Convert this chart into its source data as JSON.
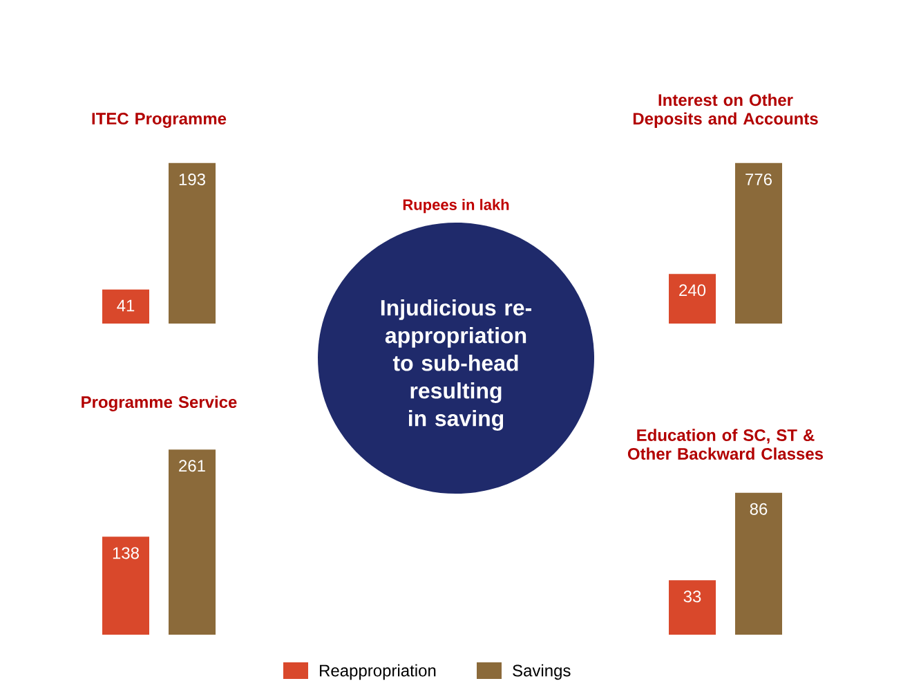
{
  "chart_data": [
    {
      "type": "bar",
      "title": "ITEC Programme",
      "categories": [
        null
      ],
      "data_labels": true,
      "series": [
        {
          "color": "#d9482b",
          "values": [
            41
          ]
        },
        {
          "color": "#8b6a3a",
          "values": [
            193
          ]
        }
      ]
    },
    {
      "type": "bar",
      "title": "Interest on  Other Deposits and Accounts",
      "categories": [
        null
      ],
      "data_labels": true,
      "series": [
        {
          "color": "#d9482b",
          "values": [
            240
          ]
        },
        {
          "color": "#8b6a3a",
          "values": [
            776
          ]
        }
      ]
    },
    {
      "type": "bar",
      "title": "Programme Service",
      "categories": [
        null
      ],
      "data_labels": true,
      "series": [
        {
          "color": "#d9482b",
          "values": [
            138
          ]
        },
        {
          "color": "#8b6a3a",
          "values": [
            261
          ]
        }
      ]
    },
    {
      "type": "bar",
      "title": "Education of SC, ST & Other Backward Classes",
      "categories": [
        null
      ],
      "data_labels": true,
      "legend": "bottom",
      "series": [
        {
          "name": "Reappropriation",
          "color": "#d9482b",
          "values": [
            33
          ]
        },
        {
          "name": "Savings",
          "color": "#8b6a3a",
          "values": [
            86
          ]
        }
      ]
    },
    {
      "type": "other",
      "title": "Rupees in lakh",
      "annotations": [
        "Injudicious re-appropriation to sub-head resulting in saving"
      ]
    }
  ]
}
